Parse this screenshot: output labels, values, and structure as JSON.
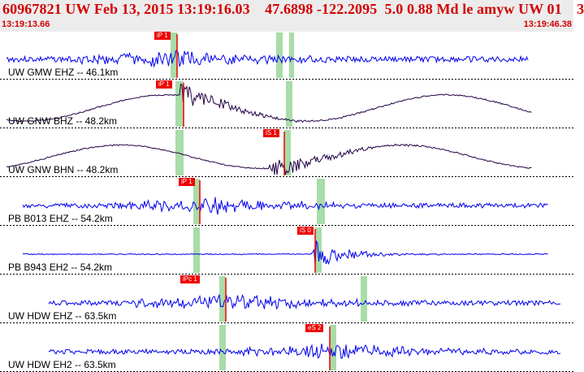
{
  "header": {
    "title": "60967821 UW Feb 13, 2015 13:19:16.03    47.6898 -122.2095  5.0 0.88 Md le amyw UW 01    3",
    "start_time": "13:19:13.66",
    "end_time": "13:19:46.38"
  },
  "colors": {
    "trace_blue": "#0000ee",
    "trace_dark": "#220044",
    "pick_red": "#ee0000",
    "window_green": "#a8dca8",
    "header_bg": "#ececec",
    "title_red": "#d40000"
  },
  "traces": [
    {
      "label": "UW GMW EHZ -- 46.1km",
      "pick": "iP 1",
      "color": "blue",
      "style": "noise",
      "onset": 0.33,
      "amp": 0.35
    },
    {
      "label": "UW GNW BHZ -- 48.2km",
      "pick": "iP 1",
      "color": "dark",
      "style": "wave",
      "onset": 0.33,
      "amp": 0.45
    },
    {
      "label": "UW GNW BHN -- 48.2km",
      "pick": "iS 1",
      "color": "dark",
      "style": "wave",
      "onset": 0.5,
      "amp": 0.4
    },
    {
      "label": "PB B013 EHZ -- 54.2km",
      "pick": "iP 1",
      "color": "blue",
      "style": "noise",
      "onset": 0.36,
      "amp": 0.3
    },
    {
      "label": "PB B943 EH2 -- 54.2km",
      "pick": "iS 0",
      "color": "blue",
      "style": "flat",
      "onset": 0.55,
      "amp": 0.1
    },
    {
      "label": "UW HDW EHZ -- 63.5km",
      "pick": "iPc 1",
      "color": "blue",
      "style": "noise",
      "onset": 0.36,
      "amp": 0.3
    },
    {
      "label": "UW HDW EH2 -- 63.5km",
      "pick": "eS 2",
      "color": "blue",
      "style": "noise",
      "onset": 0.57,
      "amp": 0.3
    }
  ]
}
